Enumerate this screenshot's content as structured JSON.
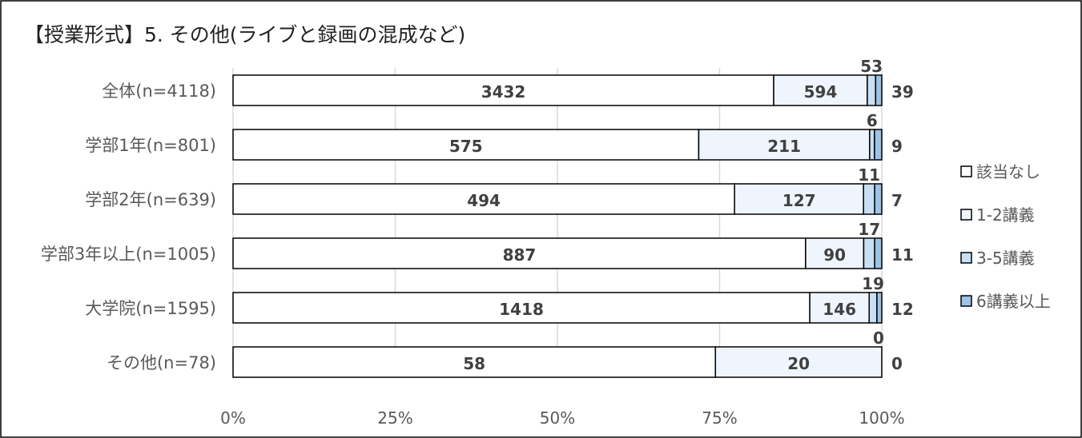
{
  "chart_data": {
    "type": "bar",
    "orientation": "horizontal",
    "stacked": "percent",
    "title": "【授業形式】5. その他(ライブと録画の混成など)",
    "categories": [
      "全体(n=4118)",
      "学部1年(n=801)",
      "学部2年(n=639)",
      "学部3年以上(n=1005)",
      "大学院(n=1595)",
      "その他(n=78)"
    ],
    "series": [
      {
        "name": "該当なし",
        "color": "#ffffff",
        "values": [
          3432,
          575,
          494,
          887,
          1418,
          58
        ]
      },
      {
        "name": "1-2講義",
        "color": "#eef5fc",
        "values": [
          594,
          211,
          127,
          90,
          146,
          20
        ]
      },
      {
        "name": "3-5講義",
        "color": "#c9dff3",
        "values": [
          53,
          6,
          11,
          17,
          19,
          0
        ]
      },
      {
        "name": "6講義以上",
        "color": "#9dc3e6",
        "values": [
          39,
          9,
          7,
          11,
          12,
          0
        ]
      }
    ],
    "x_ticks": [
      "0%",
      "25%",
      "50%",
      "75%",
      "100%"
    ],
    "xlim": [
      0,
      100
    ],
    "grid": true,
    "legend_position": "right"
  }
}
